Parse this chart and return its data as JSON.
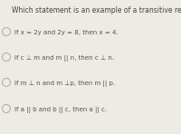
{
  "title": "Which statement is an example of a transitive relationship?",
  "options": [
    "If x = 2y and 2y = 8, then x = 4.",
    "If c ⊥ m and m || n, then c ⊥ n.",
    "If m ⊥ n and m ⊥p, then m || p.",
    "If a || b and b || c, then a || c."
  ],
  "bg_color": "#eeeae4",
  "title_color": "#444444",
  "option_color": "#555555",
  "circle_edge_color": "#aaaaaa",
  "title_fontsize": 5.5,
  "option_fontsize": 5.0
}
